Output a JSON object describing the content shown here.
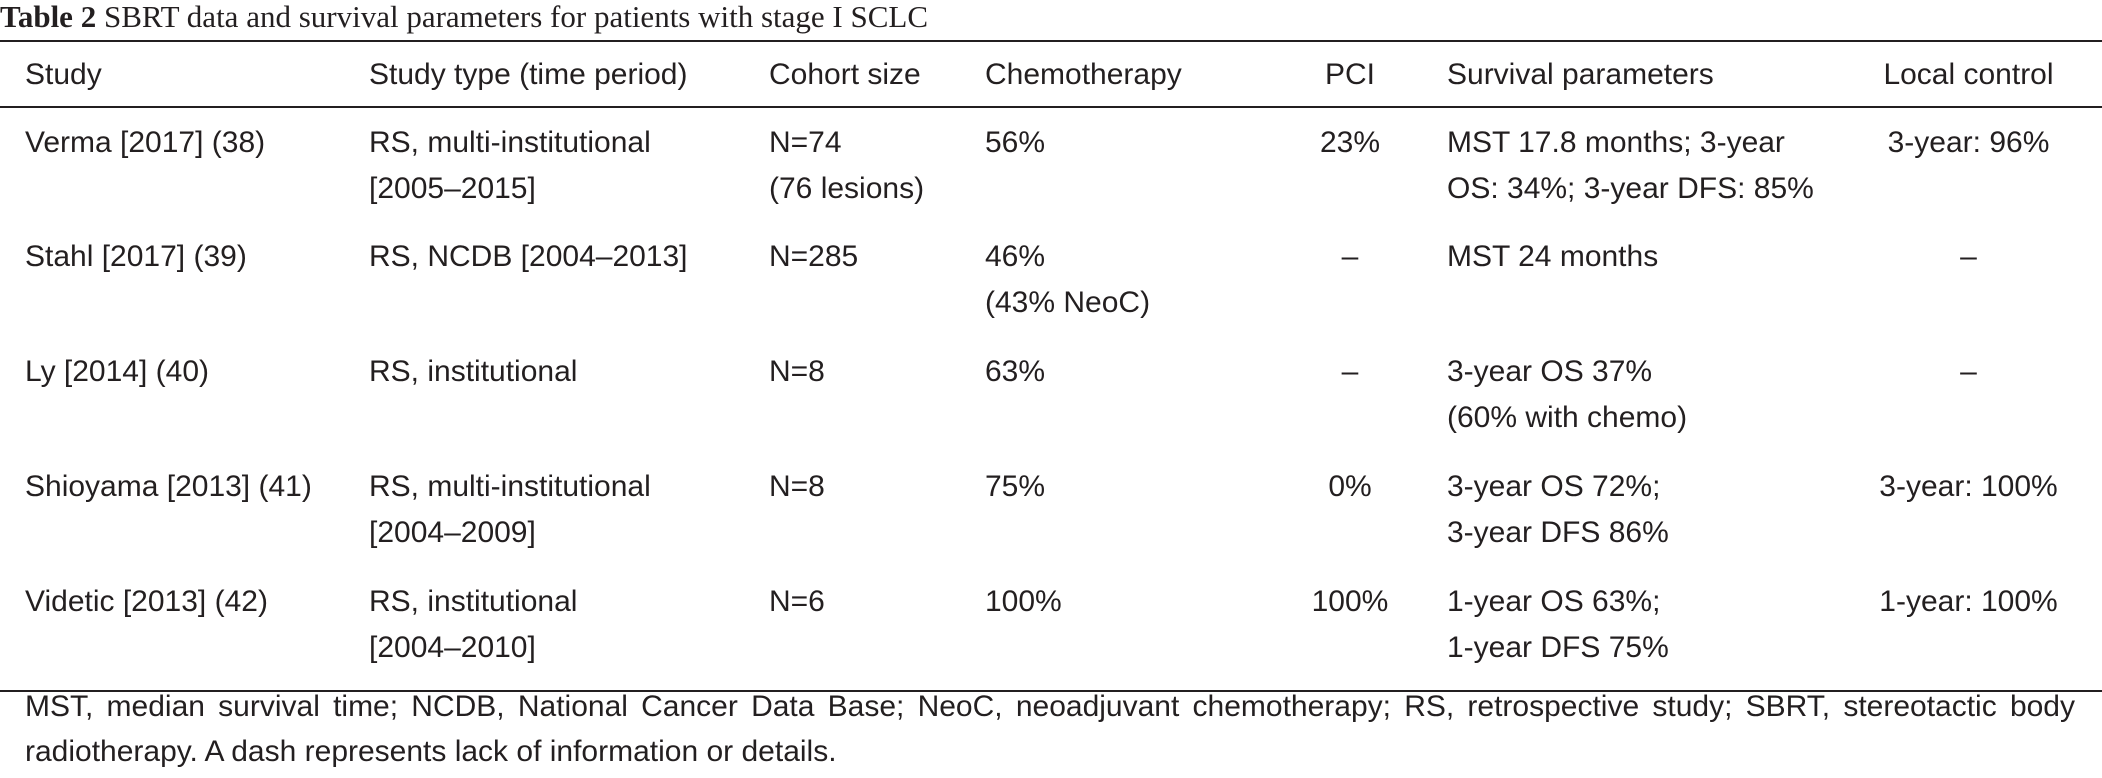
{
  "caption": {
    "label": "Table 2",
    "text": "SBRT data and survival parameters for patients with stage I SCLC"
  },
  "table": {
    "headers": [
      "Study",
      "Study type (time period)",
      "Cohort size",
      "Chemotherapy",
      "PCI",
      "Survival parameters",
      "Local control"
    ],
    "rows": [
      {
        "study": "Verma [2017] (38)",
        "study_type": [
          "RS, multi-institutional",
          "[2005–2015]"
        ],
        "cohort": [
          "N=74",
          "(76 lesions)"
        ],
        "chemo": [
          "56%"
        ],
        "pci": "23%",
        "survival": [
          "MST 17.8 months; 3-year",
          "OS: 34%; 3-year DFS: 85%"
        ],
        "local_control": "3-year: 96%"
      },
      {
        "study": "Stahl [2017] (39)",
        "study_type": [
          "RS, NCDB [2004–2013]"
        ],
        "cohort": [
          "N=285"
        ],
        "chemo": [
          "46%",
          "(43% NeoC)"
        ],
        "pci": "–",
        "survival": [
          "MST 24 months"
        ],
        "local_control": "–"
      },
      {
        "study": "Ly [2014] (40)",
        "study_type": [
          "RS, institutional"
        ],
        "cohort": [
          "N=8"
        ],
        "chemo": [
          "63%"
        ],
        "pci": "–",
        "survival": [
          "3-year OS 37%",
          "(60% with chemo)"
        ],
        "local_control": "–"
      },
      {
        "study": "Shioyama [2013] (41)",
        "study_type": [
          "RS, multi-institutional",
          "[2004–2009]"
        ],
        "cohort": [
          "N=8"
        ],
        "chemo": [
          "75%"
        ],
        "pci": "0%",
        "survival": [
          "3-year OS 72%;",
          "3-year DFS 86%"
        ],
        "local_control": "3-year: 100%"
      },
      {
        "study": "Videtic [2013] (42)",
        "study_type": [
          "RS, institutional",
          "[2004–2010]"
        ],
        "cohort": [
          "N=6"
        ],
        "chemo": [
          "100%"
        ],
        "pci": "100%",
        "survival": [
          "1-year OS 63%;",
          "1-year DFS 75%"
        ],
        "local_control": "1-year: 100%"
      }
    ]
  },
  "footnote": "MST, median survival time; NCDB, National Cancer Data Base; NeoC, neoadjuvant chemotherapy; RS, retrospective study; SBRT, stereotactic body radiotherapy. A dash represents lack of information or details."
}
